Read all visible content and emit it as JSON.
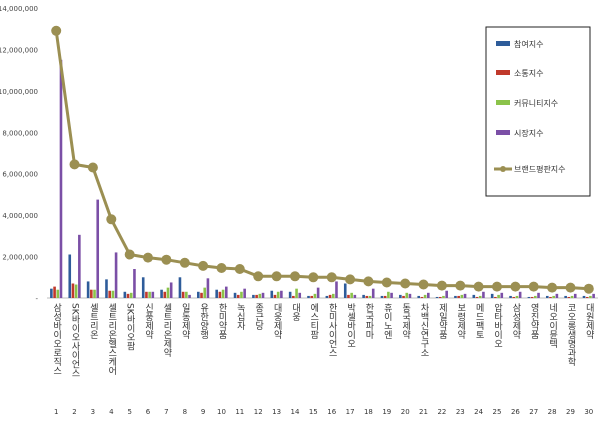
{
  "chart_data": {
    "type": "bar",
    "categories": [
      "삼성바이오로직스",
      "SK바이오사이언스",
      "셀트리온",
      "셀트리온헬스케어",
      "SK바이오팜",
      "신풍제약",
      "셀트리온제약",
      "일동제약",
      "유한양행",
      "한미약품",
      "녹십자",
      "종근당",
      "대웅제약",
      "대웅",
      "에스티팜",
      "한미사이언스",
      "박셀바이오",
      "한국파마",
      "휴이노엔",
      "동국제약",
      "차백신연구소",
      "제일약품",
      "보령제약",
      "메드팩토",
      "압타바이오",
      "삼성제약",
      "영진약품",
      "네오이뮨텍",
      "코오롱생명과학",
      "대원제약"
    ],
    "ranks": [
      "1",
      "2",
      "3",
      "4",
      "5",
      "6",
      "7",
      "8",
      "9",
      "10",
      "11",
      "12",
      "13",
      "14",
      "15",
      "16",
      "17",
      "18",
      "19",
      "20",
      "21",
      "22",
      "23",
      "24",
      "25",
      "26",
      "27",
      "28",
      "29",
      "30"
    ],
    "series": [
      {
        "name": "참여지수",
        "color": "#2e5c9a",
        "kind": "bar",
        "values": [
          450000,
          2100000,
          800000,
          900000,
          300000,
          1000000,
          400000,
          1000000,
          300000,
          400000,
          250000,
          150000,
          350000,
          300000,
          100000,
          100000,
          700000,
          150000,
          100000,
          150000,
          100000,
          50000,
          100000,
          150000,
          200000,
          100000,
          50000,
          100000,
          100000,
          100000
        ]
      },
      {
        "name": "소통지수",
        "color": "#c0392b",
        "kind": "bar",
        "values": [
          550000,
          700000,
          400000,
          350000,
          200000,
          300000,
          300000,
          300000,
          250000,
          300000,
          150000,
          150000,
          150000,
          100000,
          100000,
          150000,
          150000,
          100000,
          100000,
          100000,
          50000,
          50000,
          100000,
          50000,
          50000,
          50000,
          50000,
          50000,
          50000,
          50000
        ]
      },
      {
        "name": "커뮤니티지수",
        "color": "#8bc34a",
        "kind": "bar",
        "values": [
          400000,
          650000,
          400000,
          350000,
          250000,
          300000,
          500000,
          300000,
          500000,
          400000,
          300000,
          200000,
          300000,
          450000,
          200000,
          200000,
          250000,
          100000,
          300000,
          250000,
          150000,
          100000,
          150000,
          100000,
          150000,
          100000,
          100000,
          100000,
          100000,
          100000
        ]
      },
      {
        "name": "시장지수",
        "color": "#7b4fa6",
        "kind": "bar",
        "values": [
          11500000,
          3050000,
          4750000,
          2200000,
          1400000,
          300000,
          750000,
          150000,
          950000,
          550000,
          450000,
          250000,
          350000,
          250000,
          500000,
          800000,
          150000,
          450000,
          250000,
          200000,
          250000,
          350000,
          200000,
          300000,
          250000,
          300000,
          250000,
          200000,
          200000,
          200000
        ]
      },
      {
        "name": "브랜드평판지수",
        "color": "#9b8f52",
        "kind": "line",
        "values": [
          12900000,
          6450000,
          6300000,
          3800000,
          2100000,
          1950000,
          1850000,
          1700000,
          1550000,
          1450000,
          1400000,
          1050000,
          1050000,
          1050000,
          1000000,
          1000000,
          900000,
          800000,
          750000,
          700000,
          650000,
          600000,
          600000,
          550000,
          550000,
          550000,
          550000,
          500000,
          500000,
          450000
        ]
      }
    ],
    "y_ticks": [
      "-",
      "2,000,000",
      "4,000,000",
      "6,000,000",
      "8,000,000",
      "10,000,000",
      "12,000,000",
      "14,000,000"
    ],
    "ylim": [
      0,
      14000000
    ],
    "legend": "right",
    "grid": false
  }
}
